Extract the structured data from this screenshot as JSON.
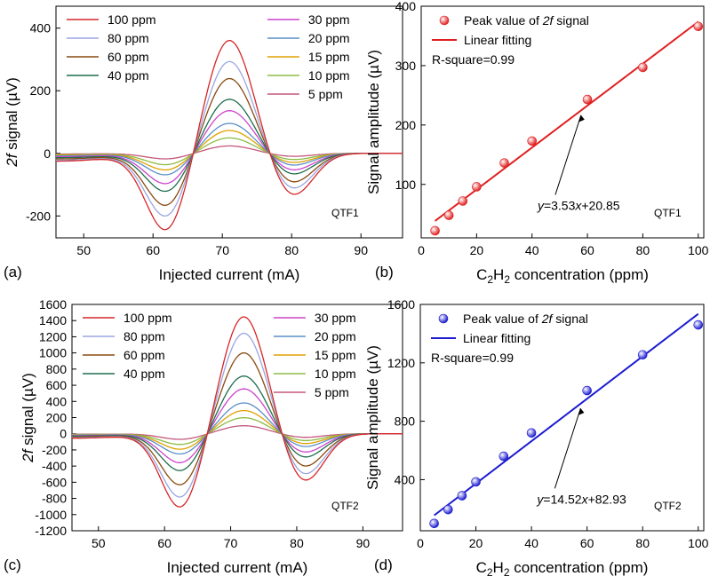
{
  "panels": [
    {
      "id": "a",
      "label": "(a)",
      "tag": "QTF1",
      "xlabel": "Injected current (mA)",
      "ylabel": "2f signal (µV)",
      "chart_data": {
        "type": "line",
        "xlim": [
          46,
          96
        ],
        "ylim": [
          -270,
          470
        ],
        "xticks": [
          50,
          60,
          70,
          80,
          90
        ],
        "yticks": [
          -200,
          0,
          200,
          400
        ],
        "legend_placement": "top (two columns)",
        "series": [
          {
            "name": "100 ppm",
            "color": "#d62728",
            "peak": 365,
            "neg": -250,
            "neg2": -140,
            "tail": -25
          },
          {
            "name": "80 ppm",
            "color": "#9aa6e0",
            "peak": 297,
            "neg": -205,
            "neg2": -118,
            "tail": -22
          },
          {
            "name": "60 ppm",
            "color": "#8a4a10",
            "peak": 242,
            "neg": -170,
            "neg2": -97,
            "tail": -18
          },
          {
            "name": "40 ppm",
            "color": "#1e6e4e",
            "peak": 175,
            "neg": -124,
            "neg2": -70,
            "tail": -14
          },
          {
            "name": "30 ppm",
            "color": "#cc44cc",
            "peak": 138,
            "neg": -99,
            "neg2": -56,
            "tail": -11
          },
          {
            "name": "20 ppm",
            "color": "#5b8fc7",
            "peak": 97,
            "neg": -70,
            "neg2": -40,
            "tail": -8
          },
          {
            "name": "15 ppm",
            "color": "#e0a000",
            "peak": 74,
            "neg": -54,
            "neg2": -31,
            "tail": -6
          },
          {
            "name": "10 ppm",
            "color": "#8dbb44",
            "peak": 50,
            "neg": -37,
            "neg2": -21,
            "tail": -4
          },
          {
            "name": "5 ppm",
            "color": "#c4567a",
            "peak": 24,
            "neg": -18,
            "neg2": -10,
            "tail": -2
          }
        ],
        "x_peak": 71,
        "x_neg": 62,
        "x_neg2": 80
      }
    },
    {
      "id": "b",
      "label": "(b)",
      "tag": "QTF1",
      "ylabel": "Signal amplitude (µV)",
      "xlabel_parts": [
        "C",
        "2",
        "H",
        "2",
        " concentration (ppm)"
      ],
      "legend": {
        "points": "Peak value of 2f signal",
        "line": "Linear fitting",
        "rsq": "R-square=0.99"
      },
      "equation": "y=3.53x+20.85",
      "chart_data": {
        "type": "scatter",
        "color": "#e02020",
        "xlim": [
          0,
          102
        ],
        "ylim": [
          10,
          400
        ],
        "xticks": [
          0,
          20,
          40,
          60,
          80,
          100
        ],
        "yticks": [
          100,
          200,
          300,
          400
        ],
        "x": [
          5,
          10,
          15,
          20,
          30,
          40,
          60,
          80,
          100
        ],
        "y": [
          22,
          48,
          72,
          96,
          136,
          173,
          243,
          297,
          366
        ],
        "fit": {
          "slope": 3.53,
          "intercept": 20.85,
          "r_square": 0.99
        }
      }
    },
    {
      "id": "c",
      "label": "(c)",
      "tag": "QTF2",
      "xlabel": "Injected current (mA)",
      "ylabel": "2f signal (µV)",
      "chart_data": {
        "type": "line",
        "xlim": [
          46,
          96
        ],
        "ylim": [
          -1200,
          1600
        ],
        "xticks": [
          50,
          60,
          70,
          80,
          90
        ],
        "yticks": [
          -1200,
          -1000,
          -800,
          -600,
          -400,
          -200,
          0,
          200,
          400,
          600,
          800,
          1000,
          1200,
          1400,
          1600
        ],
        "legend_placement": "top (two columns)",
        "series": [
          {
            "name": "100 ppm",
            "color": "#d62728",
            "peak": 1460,
            "neg": -925,
            "neg2": -610,
            "tail": -55
          },
          {
            "name": "80 ppm",
            "color": "#9aa6e0",
            "peak": 1255,
            "neg": -800,
            "neg2": -525,
            "tail": -48
          },
          {
            "name": "60 ppm",
            "color": "#8a4a10",
            "peak": 1010,
            "neg": -645,
            "neg2": -425,
            "tail": -40
          },
          {
            "name": "40 ppm",
            "color": "#1e6e4e",
            "peak": 720,
            "neg": -465,
            "neg2": -305,
            "tail": -30
          },
          {
            "name": "30 ppm",
            "color": "#cc44cc",
            "peak": 560,
            "neg": -365,
            "neg2": -240,
            "tail": -24
          },
          {
            "name": "20 ppm",
            "color": "#5b8fc7",
            "peak": 385,
            "neg": -255,
            "neg2": -168,
            "tail": -17
          },
          {
            "name": "15 ppm",
            "color": "#e0a000",
            "peak": 290,
            "neg": -195,
            "neg2": -128,
            "tail": -13
          },
          {
            "name": "10 ppm",
            "color": "#8dbb44",
            "peak": 200,
            "neg": -135,
            "neg2": -89,
            "tail": -9
          },
          {
            "name": "5 ppm",
            "color": "#c4567a",
            "peak": 100,
            "neg": -70,
            "neg2": -46,
            "tail": -5
          }
        ],
        "x_peak": 72,
        "x_neg": 62.5,
        "x_neg2": 81
      }
    },
    {
      "id": "d",
      "label": "(d)",
      "tag": "QTF2",
      "ylabel": "Signal amplitude (µV)",
      "xlabel_parts": [
        "C",
        "2",
        "H",
        "2",
        " concentration (ppm)"
      ],
      "legend": {
        "points": "Peak value of 2f signal",
        "line": "Linear fitting",
        "rsq": "R-square=0.99"
      },
      "equation": "y=14.52x+82.93",
      "chart_data": {
        "type": "scatter",
        "color": "#1c1cd0",
        "xlim": [
          0,
          102
        ],
        "ylim": [
          50,
          1600
        ],
        "xticks": [
          0,
          20,
          40,
          60,
          80,
          100
        ],
        "yticks": [
          400,
          800,
          1200,
          1600
        ],
        "x": [
          5,
          10,
          15,
          20,
          30,
          40,
          60,
          80,
          100
        ],
        "y": [
          100,
          195,
          290,
          385,
          560,
          720,
          1010,
          1255,
          1460
        ],
        "fit": {
          "slope": 14.52,
          "intercept": 82.93,
          "r_square": 0.99
        }
      }
    }
  ]
}
